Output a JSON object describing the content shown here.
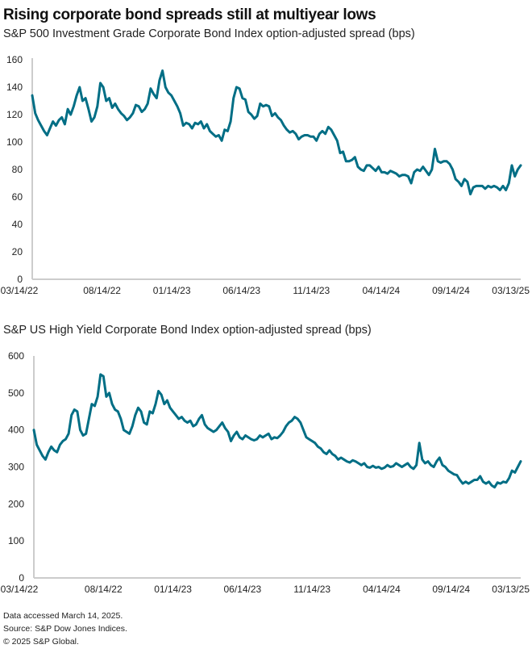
{
  "title": "Rising corporate bond spreads still at multiyear lows",
  "footer": {
    "line1": "Data accessed March 14, 2025.",
    "line2": "Source: S&P Dow Jones Indices.",
    "line3": "© 2025 S&P Global."
  },
  "colors": {
    "series": "#006E85",
    "axis": "#CCCCCC",
    "text": "#222222"
  },
  "chart_data": [
    {
      "type": "line",
      "title": "S&P 500 Investment Grade Corporate Bond Index option-adjusted spread (bps)",
      "xlabel": "",
      "ylabel": "bps",
      "xlim": [
        "03/14/22",
        "03/13/25"
      ],
      "ylim": [
        0,
        160
      ],
      "y_ticks": [
        0,
        20,
        40,
        60,
        80,
        100,
        120,
        140,
        160
      ],
      "x_tick_labels": [
        "03/14/22",
        "08/14/22",
        "01/14/23",
        "06/14/23",
        "11/14/23",
        "04/14/24",
        "09/14/24",
        "03/13/25"
      ],
      "grid": false,
      "legend": "none",
      "series": [
        {
          "name": "S&P 500 Investment Grade Corporate Bond Index OAS",
          "x_fraction": [
            0,
            0.003,
            0.01,
            0.018,
            0.025,
            0.033,
            0.04,
            0.046,
            0.053,
            0.058,
            0.063,
            0.068,
            0.074,
            0.081,
            0.087,
            0.094,
            0.099,
            0.107,
            0.114,
            0.119,
            0.125,
            0.134,
            0.142,
            0.15,
            0.158,
            0.165,
            0.173,
            0.182,
            0.187,
            0.193,
            0.198,
            0.201,
            0.208,
            0.214,
            0.221,
            0.228,
            0.236,
            0.244,
            0.251,
            0.259,
            0.267,
            0.274,
            0.282,
            0.289,
            0.297,
            0.304,
            0.31,
            0.317,
            0.325,
            0.332,
            0.337,
            0.342,
            0.347,
            0.353,
            0.36,
            0.366,
            0.373,
            0.38,
            0.388,
            0.396,
            0.403,
            0.41,
            0.417,
            0.424,
            0.431,
            0.439,
            0.446,
            0.452,
            0.459,
            0.467,
            0.475,
            0.48,
            0.488,
            0.495,
            0.503,
            0.512,
            0.518,
            0.526,
            0.535,
            0.543,
            0.551,
            0.558,
            0.566,
            0.574,
            0.58,
            0.587,
            0.594,
            0.602,
            0.61,
            0.617,
            0.625,
            0.632,
            0.64,
            0.647,
            0.655,
            0.662,
            0.67,
            0.677,
            0.685,
            0.693,
            0.7,
            0.708,
            0.716,
            0.723,
            0.73,
            0.738,
            0.745,
            0.752,
            0.759,
            0.767,
            0.775,
            0.782,
            0.79,
            0.797,
            0.805,
            0.812,
            0.818,
            0.825,
            0.833,
            0.84,
            0.848,
            0.856,
            0.863,
            0.871,
            0.878,
            0.886,
            0.894,
            0.901,
            0.909,
            0.916,
            0.925,
            0.932,
            0.939,
            0.945,
            0.951,
            0.958,
            0.964,
            0.969,
            0.975,
            0.983,
            0.99,
            0.995,
            1.0
          ],
          "values": [
            134,
            121,
            116,
            112,
            108,
            105,
            110,
            115,
            112,
            116,
            118,
            113,
            124,
            120,
            126,
            134,
            140,
            130,
            132,
            124,
            115,
            118,
            126,
            143,
            140,
            130,
            132,
            125,
            128,
            124,
            121,
            119,
            116,
            118,
            121,
            127,
            126,
            122,
            124,
            128,
            139,
            135,
            132,
            145,
            152,
            140,
            136,
            134,
            130,
            126,
            121,
            112,
            114,
            113,
            110,
            114,
            113,
            115,
            110,
            113,
            108,
            106,
            104,
            105,
            101,
            109,
            108,
            115,
            132,
            140,
            139,
            132,
            131,
            122,
            120,
            117,
            119,
            128,
            126,
            127,
            126,
            119,
            121,
            118,
            116,
            112,
            109,
            107,
            108,
            106,
            102,
            104,
            105,
            105,
            104,
            104,
            101,
            106,
            108,
            106,
            111,
            109,
            105,
            101,
            92,
            93,
            86,
            86,
            87,
            89,
            82,
            80,
            79,
            83,
            83,
            81,
            79,
            82,
            78,
            78,
            77,
            79,
            78,
            77,
            75,
            76,
            76,
            75,
            70,
            78,
            80,
            79,
            82,
            79,
            76,
            80,
            95,
            86,
            85,
            86,
            86,
            84,
            80,
            73,
            71,
            68,
            73,
            71,
            62,
            67,
            68,
            68,
            68,
            66,
            68,
            67,
            68,
            67,
            65,
            68,
            65,
            70,
            83,
            75,
            80,
            83
          ]
        }
      ]
    },
    {
      "type": "line",
      "title": "S&P US High Yield Corporate Bond Index option-adjusted spread (bps)",
      "xlabel": "",
      "ylabel": "bps",
      "xlim": [
        "03/14/22",
        "03/13/25"
      ],
      "ylim": [
        0,
        600
      ],
      "y_ticks": [
        0,
        100,
        200,
        300,
        400,
        500,
        600
      ],
      "x_tick_labels": [
        "03/14/22",
        "08/14/22",
        "01/14/23",
        "06/14/23",
        "11/14/23",
        "04/14/24",
        "09/14/24",
        "03/13/25"
      ],
      "grid": false,
      "legend": "none",
      "series": [
        {
          "name": "S&P US High Yield Corporate Bond Index OAS",
          "values": [
            400,
            360,
            345,
            330,
            320,
            340,
            355,
            345,
            340,
            360,
            370,
            375,
            390,
            440,
            455,
            450,
            400,
            385,
            390,
            430,
            470,
            465,
            490,
            550,
            545,
            490,
            500,
            470,
            455,
            450,
            430,
            400,
            395,
            390,
            410,
            440,
            460,
            450,
            420,
            415,
            450,
            445,
            470,
            505,
            495,
            470,
            480,
            460,
            450,
            440,
            430,
            435,
            425,
            420,
            425,
            410,
            415,
            430,
            440,
            415,
            405,
            400,
            395,
            400,
            410,
            420,
            405,
            395,
            370,
            385,
            395,
            380,
            375,
            385,
            380,
            375,
            372,
            375,
            385,
            380,
            385,
            390,
            375,
            380,
            378,
            385,
            395,
            410,
            420,
            425,
            435,
            430,
            420,
            400,
            380,
            375,
            370,
            365,
            355,
            350,
            340,
            335,
            345,
            335,
            330,
            320,
            325,
            320,
            315,
            312,
            318,
            315,
            310,
            305,
            310,
            300,
            298,
            303,
            298,
            300,
            295,
            298,
            305,
            300,
            302,
            310,
            305,
            300,
            305,
            310,
            300,
            295,
            305,
            365,
            320,
            310,
            315,
            305,
            300,
            315,
            325,
            305,
            300,
            290,
            285,
            280,
            278,
            265,
            255,
            260,
            255,
            260,
            265,
            265,
            275,
            260,
            255,
            260,
            250,
            245,
            258,
            255,
            260,
            258,
            270,
            290,
            285,
            300,
            315
          ]
        }
      ]
    }
  ]
}
